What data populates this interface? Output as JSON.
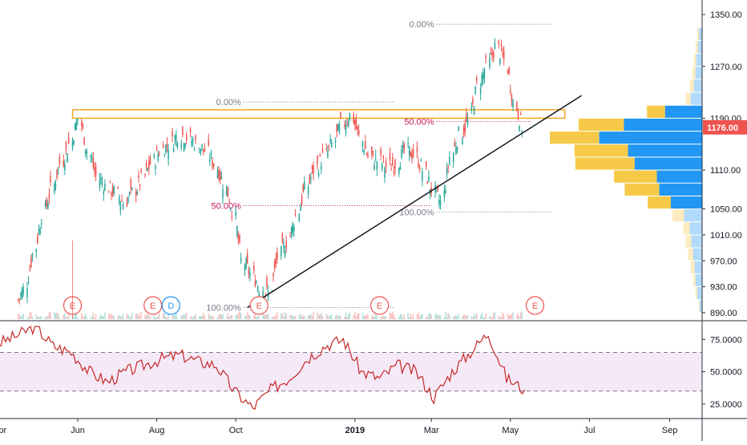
{
  "chart_data": [
    {
      "type": "candlestick",
      "title": "",
      "x_dates": [
        "2018-04-15",
        "2018-04-22",
        "2018-04-29",
        "2018-05-06",
        "2018-05-13",
        "2018-05-20",
        "2018-05-27",
        "2018-06-03",
        "2018-06-10",
        "2018-06-17",
        "2018-06-24",
        "2018-07-01",
        "2018-07-08",
        "2018-07-15",
        "2018-07-22",
        "2018-07-29",
        "2018-08-05",
        "2018-08-12",
        "2018-08-19",
        "2018-08-26",
        "2018-09-02",
        "2018-09-09",
        "2018-09-16",
        "2018-09-23",
        "2018-09-30",
        "2018-10-07",
        "2018-10-14",
        "2018-10-21",
        "2018-10-28",
        "2018-11-04",
        "2018-11-11",
        "2018-11-18",
        "2018-11-25",
        "2018-12-02",
        "2018-12-09",
        "2018-12-16",
        "2018-12-23",
        "2018-12-30",
        "2019-01-06",
        "2019-01-13",
        "2019-01-20",
        "2019-01-27",
        "2019-02-03",
        "2019-02-10",
        "2019-02-17",
        "2019-02-24",
        "2019-03-03",
        "2019-03-10",
        "2019-03-17",
        "2019-03-24",
        "2019-03-31",
        "2019-04-07",
        "2019-04-14",
        "2019-04-21",
        "2019-04-28",
        "2019-05-05"
      ],
      "close": [
        925,
        980,
        1040,
        1080,
        1120,
        1150,
        1190,
        1140,
        1100,
        1085,
        1075,
        1060,
        1075,
        1095,
        1120,
        1140,
        1150,
        1165,
        1160,
        1150,
        1140,
        1120,
        1090,
        1050,
        970,
        950,
        930,
        920,
        975,
        1000,
        1040,
        1080,
        1110,
        1130,
        1150,
        1180,
        1195,
        1160,
        1130,
        1125,
        1115,
        1120,
        1140,
        1135,
        1110,
        1080,
        1060,
        1130,
        1165,
        1185,
        1240,
        1270,
        1300,
        1280,
        1215,
        1176
      ],
      "price_axis_ticks": [
        "1350.00",
        "1270.00",
        "1190.00",
        "1110.00",
        "1050.00",
        "1010.00",
        "970.00",
        "930.00",
        "890.00"
      ],
      "price_axis_tick_values": [
        1350,
        1270,
        1190,
        1110,
        1050,
        1010,
        970,
        930,
        890
      ],
      "y_range": [
        880,
        1365
      ],
      "last_price": "1176.00",
      "x_axis_ticks": [
        "pr",
        "Jun",
        "Aug",
        "Oct",
        "2019",
        "Mar",
        "May",
        "Jul",
        "Sep"
      ],
      "x_axis_tick_dates": [
        "2018-04-01",
        "2018-06-01",
        "2018-08-01",
        "2018-10-01",
        "2019-01-01",
        "2019-03-01",
        "2019-05-01",
        "2019-07-01",
        "2019-09-01"
      ],
      "x_range": [
        "2018-04-02",
        "2019-09-26"
      ],
      "fib_levels": [
        {
          "label": "0.00%",
          "price": 1335,
          "color": "#787b86"
        },
        {
          "label": "50.00%",
          "price": 1185,
          "color": "#c2185b"
        },
        {
          "label": "100.00%",
          "price": 1045,
          "color": "#787b86"
        },
        {
          "label": "0.00%",
          "price": 1215,
          "color": "#787b86"
        },
        {
          "label": "50.00%",
          "price": 1055,
          "color": "#c2185b"
        },
        {
          "label": "100.00%",
          "price": 898,
          "color": "#787b86"
        }
      ],
      "resistance_zone": {
        "from": "2018-05-28",
        "to": "2019-06-12",
        "price_low": 1190,
        "price_high": 1203,
        "color": "#f5a623"
      },
      "trendline": {
        "from_date": "2018-10-10",
        "from_price": 898,
        "to_date": "2019-06-25",
        "to_price": 1225,
        "color": "#131722"
      },
      "earnings_markers": [
        "E",
        "E",
        "D",
        "E",
        "E",
        "E"
      ],
      "earnings_dates": [
        "2018-05-28",
        "2018-07-29",
        "2018-08-12",
        "2018-10-19",
        "2019-01-20",
        "2019-05-20"
      ],
      "volume_profile": [
        {
          "price": 1320,
          "up": 2,
          "down": 4
        },
        {
          "price": 1300,
          "up": 3,
          "down": 5
        },
        {
          "price": 1280,
          "up": 3,
          "down": 7
        },
        {
          "price": 1260,
          "up": 4,
          "down": 8
        },
        {
          "price": 1240,
          "up": 5,
          "down": 10
        },
        {
          "price": 1220,
          "up": 6,
          "down": 14
        },
        {
          "price": 1200,
          "up": 22,
          "down": 45
        },
        {
          "price": 1180,
          "up": 55,
          "down": 95
        },
        {
          "price": 1160,
          "up": 60,
          "down": 125
        },
        {
          "price": 1140,
          "up": 65,
          "down": 90
        },
        {
          "price": 1120,
          "up": 72,
          "down": 82
        },
        {
          "price": 1100,
          "up": 52,
          "down": 55
        },
        {
          "price": 1080,
          "up": 42,
          "down": 52
        },
        {
          "price": 1060,
          "up": 28,
          "down": 38
        },
        {
          "price": 1040,
          "up": 14,
          "down": 22
        },
        {
          "price": 1020,
          "up": 8,
          "down": 15
        },
        {
          "price": 1000,
          "up": 7,
          "down": 13
        },
        {
          "price": 980,
          "up": 6,
          "down": 11
        },
        {
          "price": 960,
          "up": 5,
          "down": 9
        },
        {
          "price": 940,
          "up": 3,
          "down": 8
        },
        {
          "price": 920,
          "up": 2,
          "down": 6
        },
        {
          "price": 900,
          "up": 1,
          "down": 3
        }
      ],
      "colors": {
        "up": "#26a69a",
        "down": "#ef5350",
        "vp_up": "#2196f3",
        "vp_down": "#f7c948"
      }
    },
    {
      "type": "line",
      "title": "",
      "x_dates": [
        "2018-04-01",
        "2018-04-15",
        "2018-04-29",
        "2018-05-13",
        "2018-05-27",
        "2018-06-10",
        "2018-06-24",
        "2018-07-08",
        "2018-07-22",
        "2018-08-05",
        "2018-08-19",
        "2018-09-02",
        "2018-09-16",
        "2018-09-30",
        "2018-10-14",
        "2018-10-28",
        "2018-11-11",
        "2018-11-25",
        "2018-12-09",
        "2018-12-23",
        "2019-01-06",
        "2019-01-20",
        "2019-02-03",
        "2019-02-17",
        "2019-03-03",
        "2019-03-17",
        "2019-03-31",
        "2019-04-14",
        "2019-04-28",
        "2019-05-12"
      ],
      "values": [
        72,
        78,
        85,
        70,
        65,
        50,
        42,
        50,
        55,
        60,
        63,
        58,
        55,
        35,
        22,
        36,
        45,
        60,
        70,
        75,
        50,
        45,
        55,
        50,
        30,
        50,
        65,
        80,
        45,
        36
      ],
      "y_axis_ticks": [
        "75.0000",
        "50.0000",
        "25.0000"
      ],
      "y_axis_tick_values": [
        75,
        50,
        25
      ],
      "y_range": [
        15,
        87
      ],
      "band": [
        35,
        65
      ],
      "colors": {
        "line": "#c62828",
        "band": "#9c27b0"
      }
    }
  ]
}
